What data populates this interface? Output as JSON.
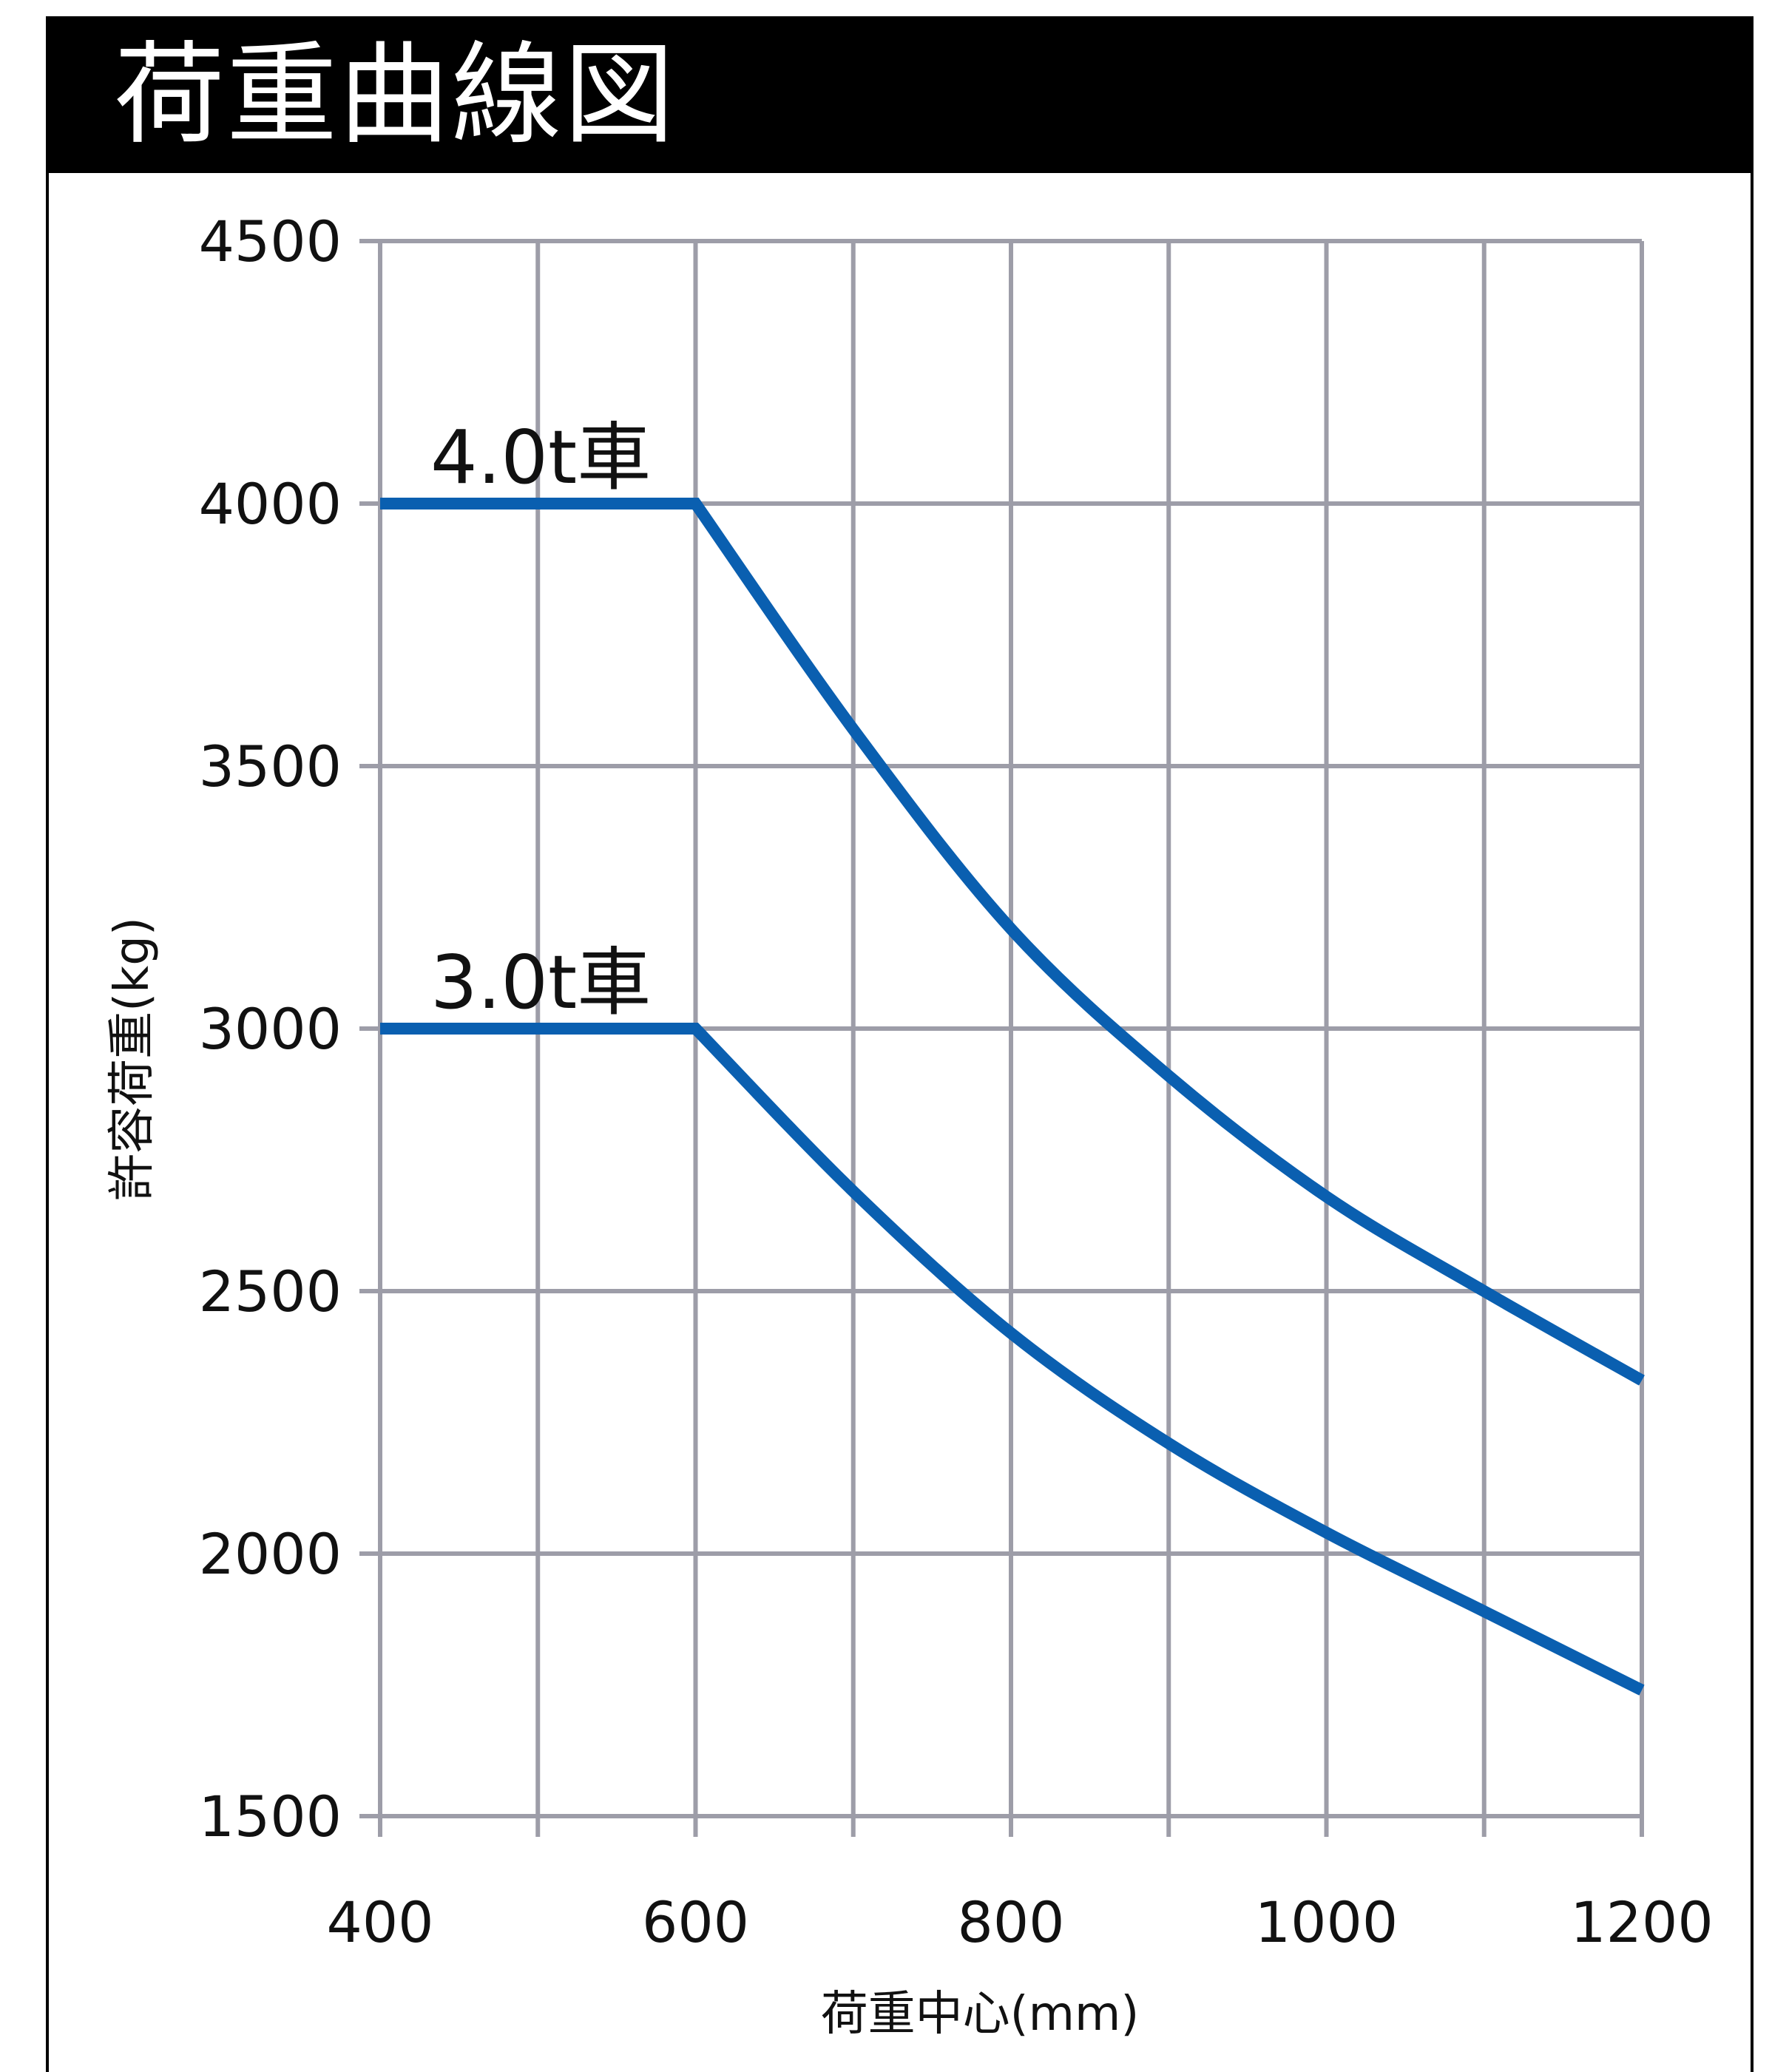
{
  "header": {
    "title": "荷重曲線図"
  },
  "chart_data": {
    "type": "line",
    "title": "荷重曲線図",
    "xlabel": "荷重中心(mm)",
    "ylabel": "許容荷重(kg)",
    "xlim": [
      400,
      1200
    ],
    "ylim": [
      1500,
      4500
    ],
    "grid": true,
    "x_ticks": [
      400,
      600,
      800,
      1000,
      1200
    ],
    "x_grid": [
      400,
      500,
      600,
      700,
      800,
      900,
      1000,
      1100,
      1200
    ],
    "y_ticks": [
      1500,
      2000,
      2500,
      3000,
      3500,
      4000,
      4500
    ],
    "line_color": "#0a5fb0",
    "grid_color": "#9d9da8",
    "series": [
      {
        "name": "4.0t車",
        "x": [
          400,
          600,
          700,
          800,
          900,
          1000,
          1100,
          1200
        ],
        "y": [
          4000,
          4000,
          3570,
          3190,
          2910,
          2680,
          2500,
          2330
        ]
      },
      {
        "name": "3.0t車",
        "x": [
          400,
          600,
          700,
          800,
          900,
          1000,
          1100,
          1200
        ],
        "y": [
          3000,
          3000,
          2690,
          2420,
          2210,
          2040,
          1890,
          1740
        ]
      }
    ]
  }
}
